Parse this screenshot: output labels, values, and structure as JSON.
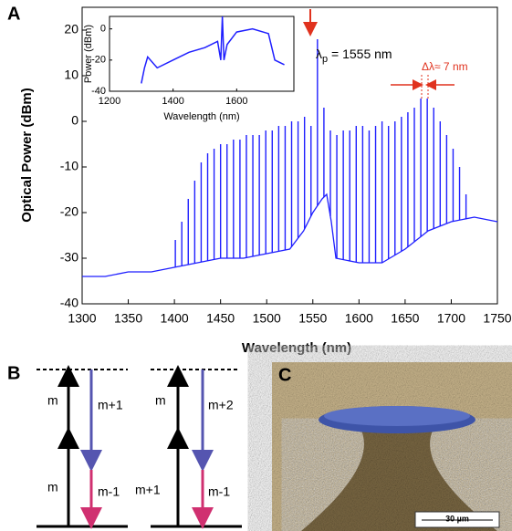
{
  "chart_data": [
    {
      "type": "spectrum",
      "panel_label": "A",
      "xlabel": "Wavelength (nm)",
      "ylabel": "Optical Power (dBm)",
      "xlim": [
        1300,
        1750
      ],
      "ylim": [
        -40,
        25
      ],
      "xticks": [
        1300,
        1350,
        1400,
        1450,
        1500,
        1550,
        1600,
        1650,
        1700,
        1750
      ],
      "yticks": [
        -40,
        -30,
        -20,
        -10,
        0,
        10,
        20
      ],
      "color": "#1f1fff",
      "x": [
        1300,
        1325,
        1350,
        1375,
        1400,
        1425,
        1450,
        1475,
        1500,
        1525,
        1540,
        1550,
        1560,
        1565,
        1570,
        1575,
        1600,
        1625,
        1650,
        1675,
        1700,
        1725,
        1750
      ],
      "values": [
        -34,
        -34,
        -33,
        -33,
        -32,
        -31,
        -30,
        -30,
        -29,
        -28,
        -24,
        -20,
        -17,
        -16,
        -22,
        -30,
        -31,
        -31,
        -28,
        -24,
        -22,
        -21,
        -22
      ],
      "comb": {
        "x": [
          1401,
          1408,
          1415,
          1422,
          1429,
          1436,
          1443,
          1450,
          1457,
          1464,
          1471,
          1478,
          1485,
          1492,
          1499,
          1506,
          1513,
          1520,
          1527,
          1534,
          1541,
          1548,
          1555,
          1562,
          1569,
          1576,
          1583,
          1590,
          1597,
          1604,
          1611,
          1618,
          1625,
          1632,
          1639,
          1646,
          1653,
          1660,
          1667,
          1674,
          1681,
          1688,
          1695,
          1702,
          1709,
          1716
        ],
        "values": [
          -26,
          -22,
          -17,
          -13,
          -9,
          -7,
          -6,
          -5,
          -5,
          -4,
          -4,
          -3,
          -3,
          -3,
          -2,
          -2,
          -1,
          -1,
          0,
          0,
          1,
          -1,
          18,
          3,
          -2,
          -3,
          -2,
          -2,
          -1,
          -1,
          -2,
          -1,
          0,
          -1,
          0,
          1,
          2,
          3,
          5,
          5,
          3,
          0,
          -3,
          -6,
          -10,
          -16
        ]
      },
      "pump_symbol": "λ",
      "pump_sub": "p",
      "pump_text": " = 1555 nm",
      "spacing_label": "Δλ≈ 7 nm"
    },
    {
      "type": "line",
      "xlabel": "Wavelength (nm)",
      "ylabel": "Power (dBm)",
      "xlim": [
        1200,
        1780
      ],
      "ylim": [
        -40,
        8
      ],
      "xticks": [
        1200,
        1400,
        1600
      ],
      "yticks": [
        -40,
        -20,
        0
      ],
      "color": "#1f1fff",
      "x": [
        1300,
        1310,
        1320,
        1350,
        1400,
        1450,
        1500,
        1540,
        1550,
        1555,
        1560,
        1570,
        1600,
        1650,
        1700,
        1720,
        1750
      ],
      "values": [
        -35,
        -25,
        -18,
        -25,
        -20,
        -15,
        -12,
        -8,
        -20,
        8,
        -20,
        -10,
        -2,
        0,
        -3,
        -20,
        -23
      ]
    }
  ],
  "diagram": {
    "panel_label": "B",
    "labels": [
      "m",
      "m+1",
      "m",
      "m-1",
      "m",
      "m+2",
      "m+1",
      "m-1"
    ]
  },
  "image": {
    "panel_label": "C",
    "scale_bar": "30 µm"
  }
}
